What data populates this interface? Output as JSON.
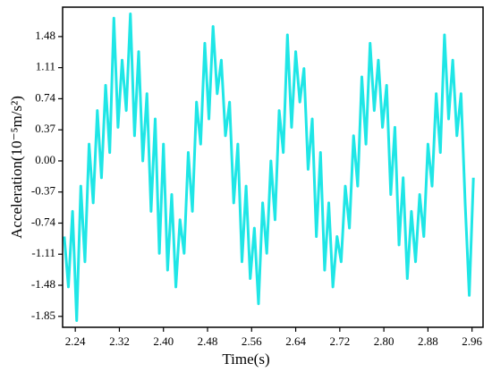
{
  "chart_data": {
    "type": "line",
    "x_label": "Time(s)",
    "y_label": "Acceleration(10⁻⁵m/s²)",
    "x": [
      2.22,
      2.2275,
      2.235,
      2.2425,
      2.25,
      2.2575,
      2.265,
      2.2725,
      2.28,
      2.2875,
      2.295,
      2.3025,
      2.31,
      2.3175,
      2.325,
      2.3325,
      2.34,
      2.3475,
      2.355,
      2.3625,
      2.37,
      2.3775,
      2.385,
      2.3925,
      2.4,
      2.4075,
      2.415,
      2.4225,
      2.43,
      2.4375,
      2.445,
      2.4525,
      2.46,
      2.4675,
      2.475,
      2.4825,
      2.49,
      2.4975,
      2.505,
      2.5125,
      2.52,
      2.5275,
      2.535,
      2.5425,
      2.55,
      2.5575,
      2.565,
      2.5725,
      2.58,
      2.5875,
      2.595,
      2.6025,
      2.61,
      2.6175,
      2.625,
      2.6325,
      2.64,
      2.6475,
      2.655,
      2.6625,
      2.67,
      2.6775,
      2.685,
      2.6925,
      2.7,
      2.7075,
      2.715,
      2.7225,
      2.73,
      2.7375,
      2.745,
      2.7525,
      2.76,
      2.7675,
      2.775,
      2.7825,
      2.79,
      2.7975,
      2.805,
      2.8125,
      2.82,
      2.8275,
      2.835,
      2.8425,
      2.85,
      2.8575,
      2.865,
      2.8725,
      2.88,
      2.8875,
      2.895,
      2.9025,
      2.91,
      2.9175,
      2.925,
      2.9325,
      2.94,
      2.9475,
      2.955,
      2.9625
    ],
    "series": [
      {
        "color": "#1fe6e6",
        "values": [
          -0.9,
          -1.5,
          -0.6,
          -1.9,
          -0.3,
          -1.2,
          0.2,
          -0.5,
          0.6,
          -0.2,
          0.9,
          0.1,
          1.7,
          0.4,
          1.2,
          0.6,
          1.75,
          0.3,
          1.3,
          0.0,
          0.8,
          -0.6,
          0.5,
          -1.1,
          0.2,
          -1.3,
          -0.4,
          -1.5,
          -0.7,
          -1.1,
          0.1,
          -0.6,
          0.7,
          0.2,
          1.4,
          0.5,
          1.6,
          0.8,
          1.2,
          0.3,
          0.7,
          -0.5,
          0.2,
          -1.2,
          -0.3,
          -1.4,
          -0.8,
          -1.7,
          -0.5,
          -1.1,
          0.0,
          -0.7,
          0.6,
          0.1,
          1.5,
          0.4,
          1.3,
          0.7,
          1.1,
          -0.1,
          0.5,
          -0.9,
          0.1,
          -1.3,
          -0.5,
          -1.5,
          -0.9,
          -1.2,
          -0.3,
          -0.8,
          0.3,
          -0.3,
          1.0,
          0.2,
          1.4,
          0.6,
          1.2,
          0.4,
          0.9,
          -0.4,
          0.4,
          -1.0,
          -0.2,
          -1.4,
          -0.6,
          -1.2,
          -0.4,
          -0.9,
          0.2,
          -0.3,
          0.8,
          0.1,
          1.5,
          0.5,
          1.2,
          0.3,
          0.8,
          -0.5,
          -1.6,
          -0.2
        ]
      }
    ],
    "xlim": [
      2.217,
      2.98
    ],
    "ylim": [
      -1.98,
      1.83
    ],
    "xticks": [
      2.24,
      2.32,
      {
        "value": 2.4,
        "label": "2.40"
      },
      2.48,
      2.56,
      2.64,
      2.72,
      {
        "value": 2.8,
        "label": "2.80"
      },
      2.88,
      2.96
    ],
    "yticks": [
      -1.85,
      -1.48,
      -1.11,
      -0.74,
      -0.37,
      {
        "value": 0,
        "label": "0.00"
      },
      0.37,
      0.74,
      1.11,
      1.48
    ]
  }
}
